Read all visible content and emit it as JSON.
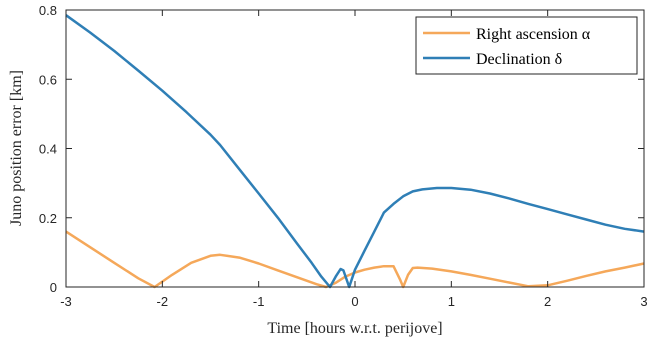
{
  "chart_data": {
    "type": "line",
    "xlabel": "Time [hours w.r.t. perijove]",
    "ylabel": "Juno position error [km]",
    "xlim": [
      -3,
      3
    ],
    "ylim": [
      0,
      0.8
    ],
    "xticks": [
      "-3",
      "-2",
      "-1",
      "0",
      "1",
      "2",
      "3"
    ],
    "yticks": [
      "0",
      "0.2",
      "0.4",
      "0.6",
      "0.8"
    ],
    "grid": false,
    "legend_position": "top-right",
    "series": [
      {
        "name": "Right ascension α",
        "color": "#f5a85a",
        "x": [
          -3.0,
          -2.75,
          -2.5,
          -2.25,
          -2.08,
          -1.9,
          -1.7,
          -1.5,
          -1.4,
          -1.2,
          -1.0,
          -0.8,
          -0.6,
          -0.4,
          -0.3,
          -0.2,
          -0.1,
          0.0,
          0.1,
          0.2,
          0.3,
          0.4,
          0.47,
          0.5,
          0.55,
          0.6,
          0.65,
          0.8,
          1.0,
          1.2,
          1.4,
          1.6,
          1.8,
          2.0,
          2.2,
          2.4,
          2.6,
          2.8,
          3.0
        ],
        "y": [
          0.16,
          0.115,
          0.07,
          0.025,
          0.0,
          0.035,
          0.07,
          0.09,
          0.093,
          0.085,
          0.068,
          0.048,
          0.028,
          0.008,
          0.0,
          0.012,
          0.03,
          0.042,
          0.05,
          0.056,
          0.06,
          0.06,
          0.02,
          0.0,
          0.035,
          0.055,
          0.056,
          0.053,
          0.045,
          0.035,
          0.024,
          0.013,
          0.002,
          0.005,
          0.018,
          0.032,
          0.045,
          0.056,
          0.068
        ]
      },
      {
        "name": "Declination δ",
        "color": "#2f7fb6",
        "x": [
          -3.0,
          -2.75,
          -2.5,
          -2.25,
          -2.0,
          -1.75,
          -1.5,
          -1.4,
          -1.2,
          -1.0,
          -0.8,
          -0.6,
          -0.45,
          -0.35,
          -0.26,
          -0.2,
          -0.15,
          -0.12,
          -0.06,
          0.0,
          0.1,
          0.2,
          0.3,
          0.4,
          0.5,
          0.6,
          0.7,
          0.85,
          1.0,
          1.2,
          1.4,
          1.6,
          1.8,
          2.0,
          2.2,
          2.4,
          2.6,
          2.8,
          3.0
        ],
        "y": [
          0.785,
          0.735,
          0.682,
          0.625,
          0.567,
          0.505,
          0.44,
          0.41,
          0.34,
          0.27,
          0.2,
          0.125,
          0.07,
          0.03,
          0.0,
          0.03,
          0.052,
          0.048,
          0.0,
          0.05,
          0.105,
          0.16,
          0.215,
          0.24,
          0.262,
          0.276,
          0.282,
          0.286,
          0.286,
          0.281,
          0.27,
          0.256,
          0.24,
          0.225,
          0.21,
          0.195,
          0.18,
          0.168,
          0.16
        ]
      }
    ]
  }
}
